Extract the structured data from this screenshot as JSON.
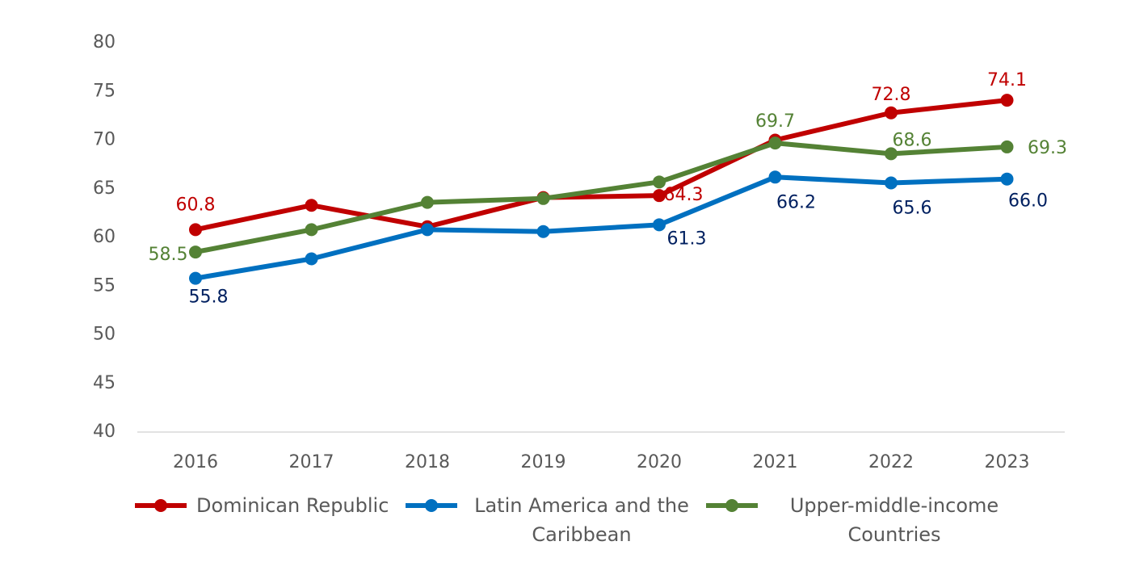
{
  "chart_data": {
    "type": "line",
    "categories": [
      "2016",
      "2017",
      "2018",
      "2019",
      "2020",
      "2021",
      "2022",
      "2023"
    ],
    "series": [
      {
        "name": "Dominican Republic",
        "color": "#c00000",
        "label_color": "#c00000",
        "values": [
          60.8,
          63.3,
          61.1,
          64.1,
          64.3,
          70.0,
          72.8,
          74.1
        ],
        "value_labels": [
          "60.8",
          null,
          null,
          null,
          "64.3",
          null,
          "72.8",
          "74.1"
        ]
      },
      {
        "name": "Latin America and the Caribbean",
        "color": "#0070c0",
        "label_color": "#002060",
        "values": [
          55.8,
          57.8,
          60.8,
          60.6,
          61.3,
          66.2,
          65.6,
          66.0
        ],
        "value_labels": [
          "55.8",
          null,
          null,
          null,
          "61.3",
          "66.2",
          "65.6",
          "66.0"
        ]
      },
      {
        "name": "Upper-middle-income Countries",
        "color": "#548235",
        "label_color": "#548235",
        "values": [
          58.5,
          60.8,
          63.6,
          64.0,
          65.7,
          69.7,
          68.6,
          69.3
        ],
        "value_labels": [
          "58.5",
          null,
          null,
          null,
          null,
          "69.7",
          "68.6",
          "69.3"
        ]
      }
    ],
    "ylim": [
      40,
      80
    ],
    "yticks": [
      40,
      45,
      50,
      55,
      60,
      65,
      70,
      75,
      80
    ],
    "grid": false,
    "legend": "bottom"
  }
}
